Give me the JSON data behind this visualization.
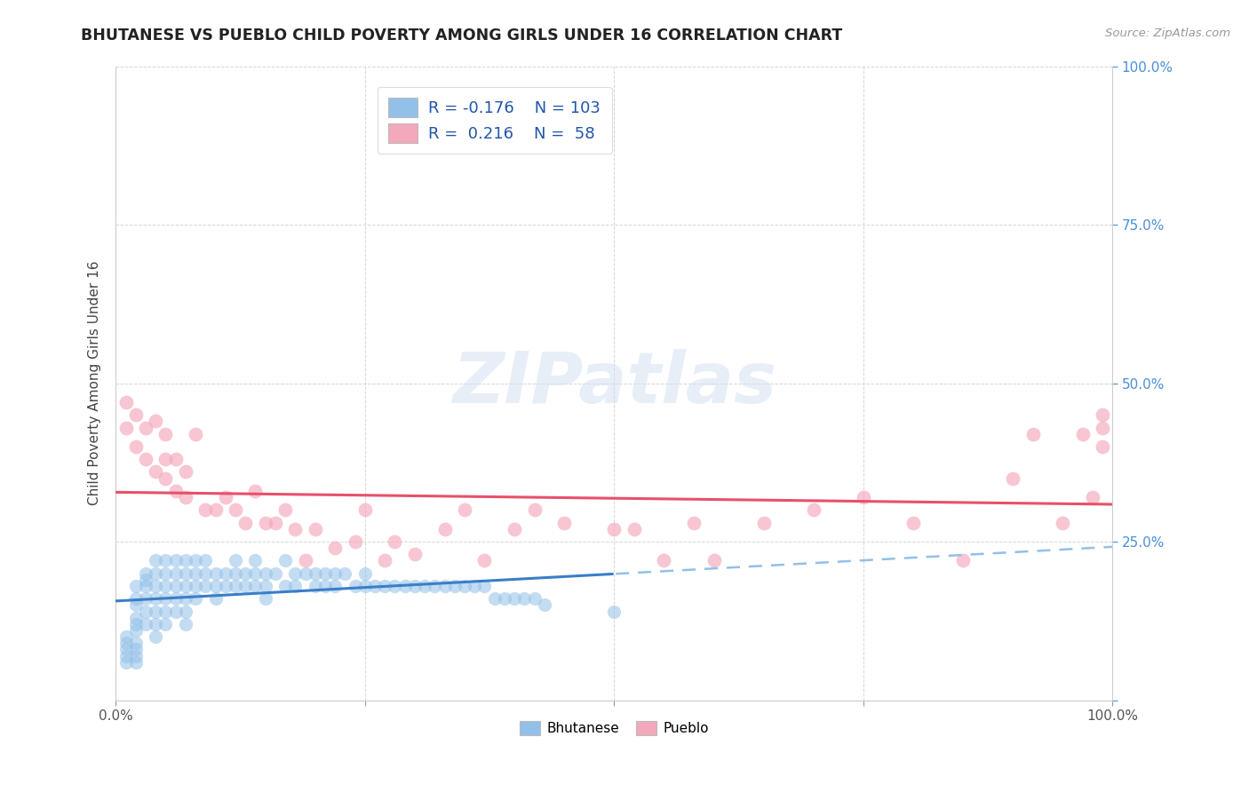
{
  "title": "BHUTANESE VS PUEBLO CHILD POVERTY AMONG GIRLS UNDER 16 CORRELATION CHART",
  "source": "Source: ZipAtlas.com",
  "ylabel": "Child Poverty Among Girls Under 16",
  "xlim": [
    0,
    1
  ],
  "ylim": [
    0,
    1
  ],
  "xticks": [
    0.0,
    0.25,
    0.5,
    0.75,
    1.0
  ],
  "yticks": [
    0.0,
    0.25,
    0.5,
    0.75,
    1.0
  ],
  "xticklabels": [
    "0.0%",
    "",
    "",
    "",
    "100.0%"
  ],
  "yticklabels_right": [
    "",
    "25.0%",
    "50.0%",
    "75.0%",
    "100.0%"
  ],
  "blue_color": "#92C0E8",
  "pink_color": "#F4A8BB",
  "blue_line_color": "#3A7EC8",
  "pink_line_color": "#E8506A",
  "blue_dashed_color": "#92C0E8",
  "watermark_color": "#D0DFF0",
  "blue_scatter_x": [
    0.01,
    0.01,
    0.01,
    0.01,
    0.01,
    0.02,
    0.02,
    0.02,
    0.02,
    0.02,
    0.02,
    0.02,
    0.02,
    0.02,
    0.02,
    0.03,
    0.03,
    0.03,
    0.03,
    0.03,
    0.03,
    0.04,
    0.04,
    0.04,
    0.04,
    0.04,
    0.04,
    0.04,
    0.05,
    0.05,
    0.05,
    0.05,
    0.05,
    0.05,
    0.06,
    0.06,
    0.06,
    0.06,
    0.06,
    0.07,
    0.07,
    0.07,
    0.07,
    0.07,
    0.07,
    0.08,
    0.08,
    0.08,
    0.08,
    0.09,
    0.09,
    0.09,
    0.1,
    0.1,
    0.1,
    0.11,
    0.11,
    0.12,
    0.12,
    0.12,
    0.13,
    0.13,
    0.14,
    0.14,
    0.14,
    0.15,
    0.15,
    0.15,
    0.16,
    0.17,
    0.17,
    0.18,
    0.18,
    0.19,
    0.2,
    0.2,
    0.21,
    0.21,
    0.22,
    0.22,
    0.23,
    0.24,
    0.25,
    0.25,
    0.26,
    0.27,
    0.28,
    0.29,
    0.3,
    0.31,
    0.32,
    0.33,
    0.34,
    0.35,
    0.36,
    0.37,
    0.38,
    0.39,
    0.4,
    0.41,
    0.42,
    0.43,
    0.5
  ],
  "blue_scatter_y": [
    0.1,
    0.09,
    0.08,
    0.07,
    0.06,
    0.18,
    0.16,
    0.15,
    0.13,
    0.12,
    0.11,
    0.09,
    0.08,
    0.07,
    0.06,
    0.2,
    0.19,
    0.18,
    0.16,
    0.14,
    0.12,
    0.22,
    0.2,
    0.18,
    0.16,
    0.14,
    0.12,
    0.1,
    0.22,
    0.2,
    0.18,
    0.16,
    0.14,
    0.12,
    0.22,
    0.2,
    0.18,
    0.16,
    0.14,
    0.22,
    0.2,
    0.18,
    0.16,
    0.14,
    0.12,
    0.22,
    0.2,
    0.18,
    0.16,
    0.22,
    0.2,
    0.18,
    0.2,
    0.18,
    0.16,
    0.2,
    0.18,
    0.22,
    0.2,
    0.18,
    0.2,
    0.18,
    0.22,
    0.2,
    0.18,
    0.2,
    0.18,
    0.16,
    0.2,
    0.22,
    0.18,
    0.2,
    0.18,
    0.2,
    0.2,
    0.18,
    0.2,
    0.18,
    0.2,
    0.18,
    0.2,
    0.18,
    0.2,
    0.18,
    0.18,
    0.18,
    0.18,
    0.18,
    0.18,
    0.18,
    0.18,
    0.18,
    0.18,
    0.18,
    0.18,
    0.18,
    0.16,
    0.16,
    0.16,
    0.16,
    0.16,
    0.15,
    0.14
  ],
  "pink_scatter_x": [
    0.01,
    0.01,
    0.02,
    0.02,
    0.03,
    0.03,
    0.04,
    0.04,
    0.05,
    0.05,
    0.05,
    0.06,
    0.06,
    0.07,
    0.07,
    0.08,
    0.09,
    0.1,
    0.11,
    0.12,
    0.13,
    0.14,
    0.15,
    0.16,
    0.17,
    0.18,
    0.19,
    0.2,
    0.22,
    0.24,
    0.25,
    0.27,
    0.28,
    0.3,
    0.33,
    0.35,
    0.37,
    0.4,
    0.42,
    0.45,
    0.5,
    0.52,
    0.55,
    0.58,
    0.6,
    0.65,
    0.7,
    0.75,
    0.8,
    0.85,
    0.9,
    0.92,
    0.95,
    0.97,
    0.98,
    0.99,
    0.99,
    0.99
  ],
  "pink_scatter_y": [
    0.47,
    0.43,
    0.45,
    0.4,
    0.43,
    0.38,
    0.44,
    0.36,
    0.42,
    0.38,
    0.35,
    0.38,
    0.33,
    0.36,
    0.32,
    0.42,
    0.3,
    0.3,
    0.32,
    0.3,
    0.28,
    0.33,
    0.28,
    0.28,
    0.3,
    0.27,
    0.22,
    0.27,
    0.24,
    0.25,
    0.3,
    0.22,
    0.25,
    0.23,
    0.27,
    0.3,
    0.22,
    0.27,
    0.3,
    0.28,
    0.27,
    0.27,
    0.22,
    0.28,
    0.22,
    0.28,
    0.3,
    0.32,
    0.28,
    0.22,
    0.35,
    0.42,
    0.28,
    0.42,
    0.32,
    0.45,
    0.43,
    0.4
  ]
}
